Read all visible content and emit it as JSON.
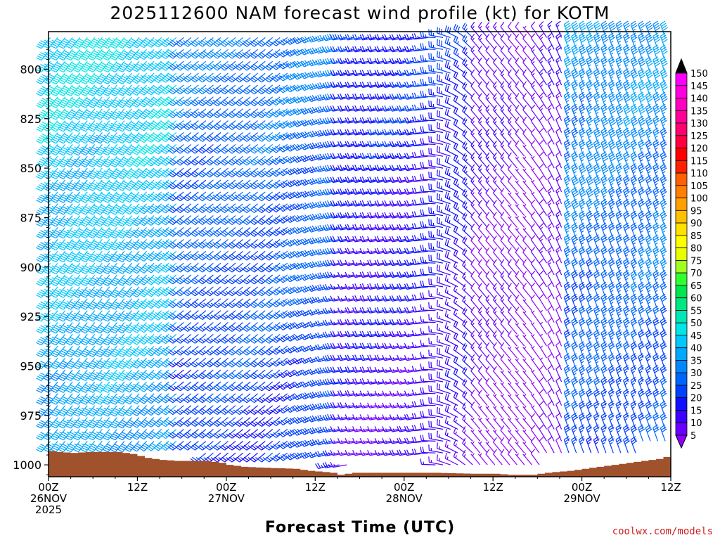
{
  "chart_data": {
    "type": "wind-profile",
    "title": "2025112600 NAM forecast wind profile (kt) for KOTM",
    "xlabel": "Forecast Time (UTC)",
    "credit": "coolwx.com/models",
    "y_axis": {
      "ticks": [
        800,
        825,
        850,
        875,
        900,
        925,
        950,
        975,
        1000
      ],
      "ylim": [
        781,
        1006
      ],
      "unit": "hPa",
      "inverted": true
    },
    "x_axis": {
      "ticks": [
        {
          "hour": 0,
          "line1": "00Z",
          "line2": "26NOV",
          "line3": "2025"
        },
        {
          "hour": 12,
          "line1": "12Z",
          "line2": "",
          "line3": ""
        },
        {
          "hour": 24,
          "line1": "00Z",
          "line2": "27NOV",
          "line3": ""
        },
        {
          "hour": 36,
          "line1": "12Z",
          "line2": "",
          "line3": ""
        },
        {
          "hour": 48,
          "line1": "00Z",
          "line2": "28NOV",
          "line3": ""
        },
        {
          "hour": 60,
          "line1": "12Z",
          "line2": "",
          "line3": ""
        },
        {
          "hour": 72,
          "line1": "00Z",
          "line2": "29NOV",
          "line3": ""
        },
        {
          "hour": 84,
          "line1": "12Z",
          "line2": "",
          "line3": ""
        }
      ],
      "xlim": [
        0,
        84
      ],
      "unit": "hours"
    },
    "colorbar": {
      "levels": [
        5,
        10,
        15,
        20,
        25,
        30,
        35,
        40,
        45,
        50,
        55,
        60,
        65,
        70,
        75,
        80,
        85,
        90,
        95,
        100,
        105,
        110,
        115,
        120,
        125,
        130,
        135,
        140,
        145,
        150
      ],
      "colors": [
        "#8c00ff",
        "#6a00ff",
        "#3c00ff",
        "#1010ff",
        "#0040ff",
        "#0064ff",
        "#0088ff",
        "#00a8ff",
        "#00c8ff",
        "#00e6e6",
        "#00e6b4",
        "#00e680",
        "#00e650",
        "#30ff30",
        "#a0ff20",
        "#e8ff00",
        "#ffff00",
        "#ffe000",
        "#ffc000",
        "#ffa000",
        "#ff8000",
        "#ff6000",
        "#ff2000",
        "#ff0000",
        "#ff0040",
        "#ff0070",
        "#ff0099",
        "#ff00c0",
        "#ff00e0",
        "#ff00ff"
      ]
    },
    "terrain_color": "#a0522d",
    "surface_pressure": [
      [
        0,
        993
      ],
      [
        1,
        993.5
      ],
      [
        3,
        994
      ],
      [
        5,
        993.5
      ],
      [
        9,
        993.5
      ],
      [
        11,
        994.5
      ],
      [
        12,
        995.5
      ],
      [
        13,
        996.5
      ],
      [
        15,
        997.5
      ],
      [
        17,
        998
      ],
      [
        21,
        998
      ],
      [
        23,
        999
      ],
      [
        24,
        1000
      ],
      [
        26,
        1001
      ],
      [
        29,
        1001.5
      ],
      [
        33,
        1002
      ],
      [
        35,
        1003
      ],
      [
        38,
        1004
      ],
      [
        39,
        1005
      ],
      [
        41,
        1004
      ],
      [
        45,
        1004
      ],
      [
        48,
        1004
      ],
      [
        52,
        1004
      ],
      [
        57,
        1004.5
      ],
      [
        60,
        1004.5
      ],
      [
        62,
        1005
      ],
      [
        65,
        1005
      ],
      [
        67,
        1004
      ],
      [
        70,
        1003
      ],
      [
        72,
        1002
      ],
      [
        74,
        1001
      ],
      [
        76,
        1000
      ],
      [
        78,
        999
      ],
      [
        80,
        998
      ],
      [
        82,
        997
      ],
      [
        83,
        996
      ],
      [
        84,
        995.5
      ]
    ],
    "wind_field": {
      "note": "Wind barbs drawn at 1-hour spacing every ~6 hPa above the surface; direction (deg, from) and speed (kt) estimated from the plotted barbs.",
      "phases": [
        {
          "hours": [
            0,
            18
          ],
          "dir_deg": 220,
          "speed_range_kt": [
            35,
            50
          ]
        },
        {
          "hours": [
            18,
            40
          ],
          "dir_deg": 230,
          "speed_range_kt": [
            20,
            35
          ]
        },
        {
          "hours": [
            40,
            58
          ],
          "dir_deg": 260,
          "speed_range_kt": [
            10,
            25
          ]
        },
        {
          "hours": [
            58,
            70
          ],
          "dir_deg": 320,
          "speed_range_kt": [
            5,
            15
          ]
        },
        {
          "hours": [
            70,
            84
          ],
          "dir_deg": 340,
          "speed_range_kt": [
            20,
            40
          ]
        }
      ]
    }
  }
}
